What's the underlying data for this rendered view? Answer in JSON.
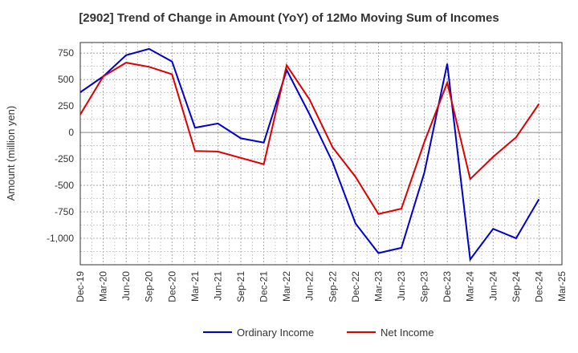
{
  "chart_data": {
    "type": "line",
    "title": "[2902]  Trend of Change in Amount (YoY) of 12Mo Moving Sum of Incomes",
    "ylabel": "Amount (million yen)",
    "xlabel": "",
    "categories": [
      "Dec-19",
      "Mar-20",
      "Jun-20",
      "Sep-20",
      "Dec-20",
      "Mar-21",
      "Jun-21",
      "Sep-21",
      "Dec-21",
      "Mar-22",
      "Jun-22",
      "Sep-22",
      "Dec-22",
      "Mar-23",
      "Jun-23",
      "Sep-23",
      "Dec-23",
      "Mar-24",
      "Jun-24",
      "Sep-24",
      "Dec-24",
      "Mar-25"
    ],
    "yticks": [
      750,
      500,
      250,
      0,
      -250,
      -500,
      -750,
      -1000
    ],
    "ytick_labels": [
      "750",
      "500",
      "250",
      "0",
      "-250",
      "-500",
      "-750",
      "-1,000"
    ],
    "ylim": [
      -1250,
      850
    ],
    "grid": true,
    "legend_position": "bottom",
    "series": [
      {
        "name": "Ordinary Income",
        "color": "#0000cc",
        "values": [
          380,
          530,
          730,
          790,
          670,
          45,
          85,
          -55,
          -95,
          590,
          170,
          -280,
          -860,
          -1140,
          -1090,
          -380,
          650,
          -1200,
          -910,
          -1000,
          -630,
          null
        ]
      },
      {
        "name": "Net Income",
        "color": "#dd0000",
        "values": [
          170,
          530,
          660,
          620,
          550,
          -175,
          -180,
          -240,
          -300,
          635,
          310,
          -140,
          -420,
          -770,
          -720,
          -90,
          470,
          -440,
          -230,
          -45,
          270,
          null
        ]
      }
    ]
  }
}
